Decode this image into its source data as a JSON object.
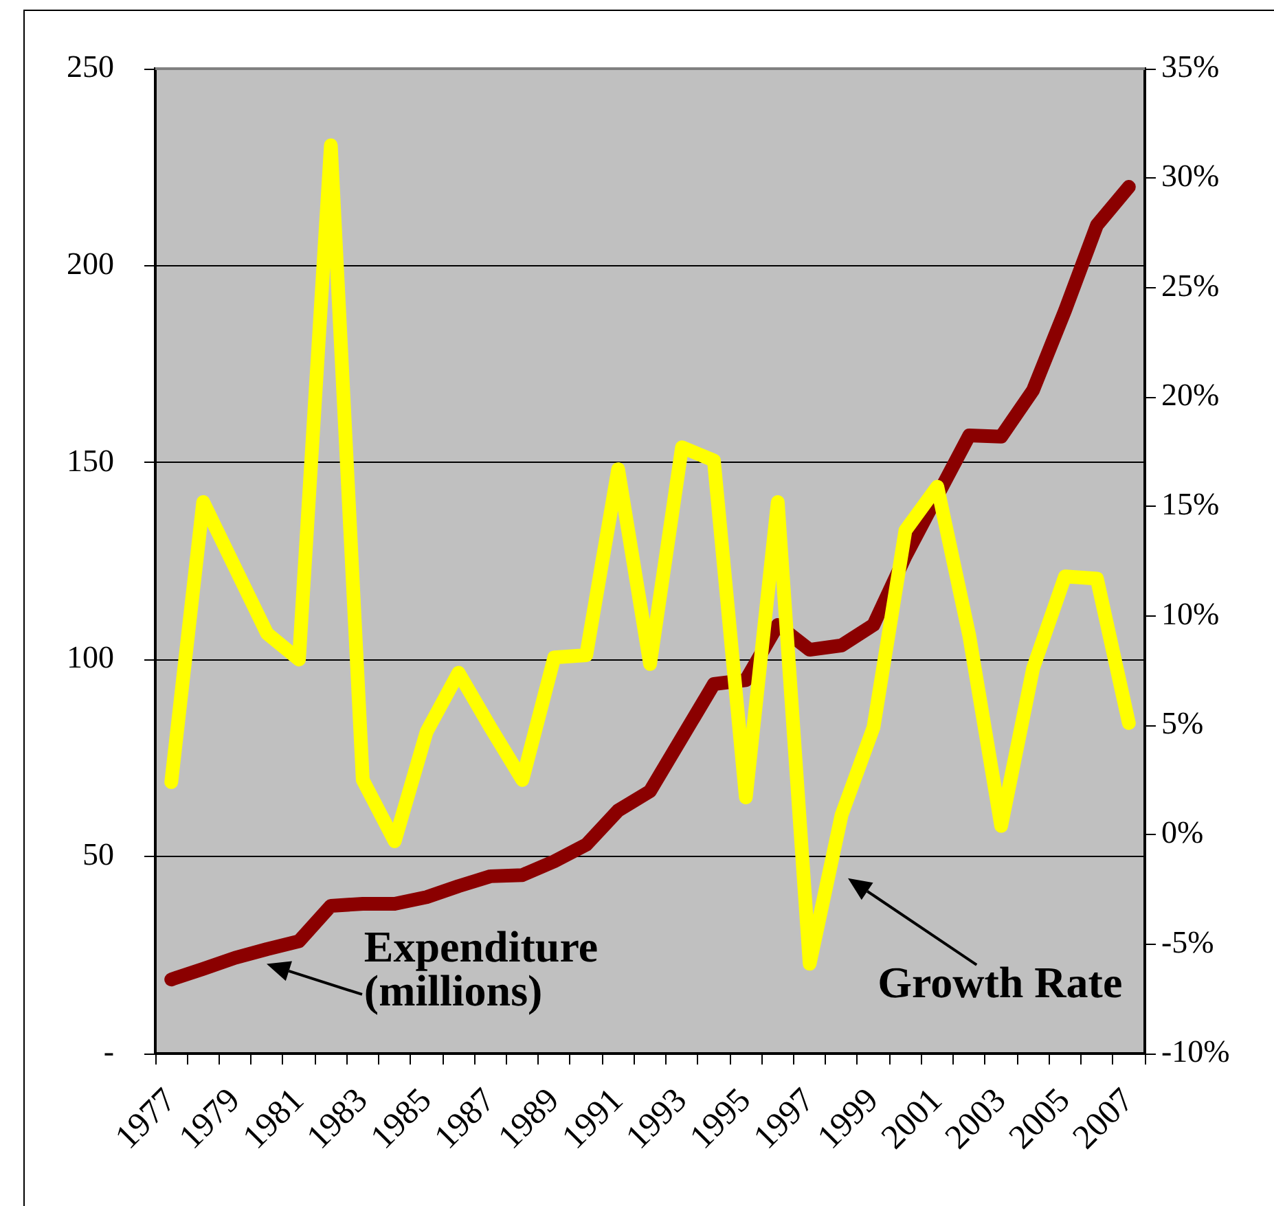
{
  "chart_data": {
    "type": "line",
    "categories": [
      "1977",
      null,
      "1979",
      null,
      "1981",
      null,
      "1983",
      null,
      "1985",
      null,
      "1987",
      null,
      "1989",
      null,
      "1991",
      null,
      "1993",
      null,
      "1995",
      null,
      "1997",
      null,
      "1999",
      null,
      "2001",
      null,
      "2003",
      null,
      "2005",
      null,
      "2007"
    ],
    "series": [
      {
        "name": "Expenditure (millions)",
        "color": "#8b0000",
        "values": [
          18.8,
          21.5,
          24.3,
          26.5,
          28.5,
          37.5,
          38.0,
          38.0,
          39.7,
          42.5,
          45.0,
          45.3,
          48.8,
          53.0,
          61.7,
          66.6,
          80.2,
          93.8,
          94.8,
          108.8,
          102.5,
          103.6,
          108.8,
          126.2,
          141.6,
          156.9,
          156.6,
          168.4,
          188.6,
          210.3,
          220.0
        ]
      },
      {
        "name": "Growth Rate",
        "color": "#ffff00",
        "axis": "y2",
        "values": [
          2.4,
          15.2,
          12.2,
          9.2,
          8.0,
          31.5,
          2.5,
          -0.3,
          4.7,
          7.4,
          4.9,
          2.5,
          8.1,
          8.2,
          16.7,
          7.8,
          17.7,
          17.1,
          1.7,
          15.2,
          -5.9,
          0.9,
          4.9,
          13.9,
          15.9,
          9.1,
          0.4,
          7.6,
          11.8,
          11.7,
          5.1
        ]
      }
    ],
    "ylim": [
      0,
      250
    ],
    "yticks": [
      {
        "value": 0,
        "label": "-"
      },
      50,
      100,
      150,
      200,
      250
    ],
    "y2lim": [
      -10,
      35
    ],
    "y2ticks": [
      {
        "value": -10,
        "label": "-10%"
      },
      {
        "value": -5,
        "label": "-5%"
      },
      {
        "value": 0,
        "label": "0%"
      },
      {
        "value": 5,
        "label": "5%"
      },
      {
        "value": 10,
        "label": "10%"
      },
      {
        "value": 15,
        "label": "15%"
      },
      {
        "value": 20,
        "label": "20%"
      },
      {
        "value": 25,
        "label": "25%"
      },
      {
        "value": 30,
        "label": "30%"
      },
      {
        "value": 35,
        "label": "35%"
      }
    ],
    "grid": "y",
    "legend": false,
    "marker": "none",
    "line_style": "solid"
  }
}
